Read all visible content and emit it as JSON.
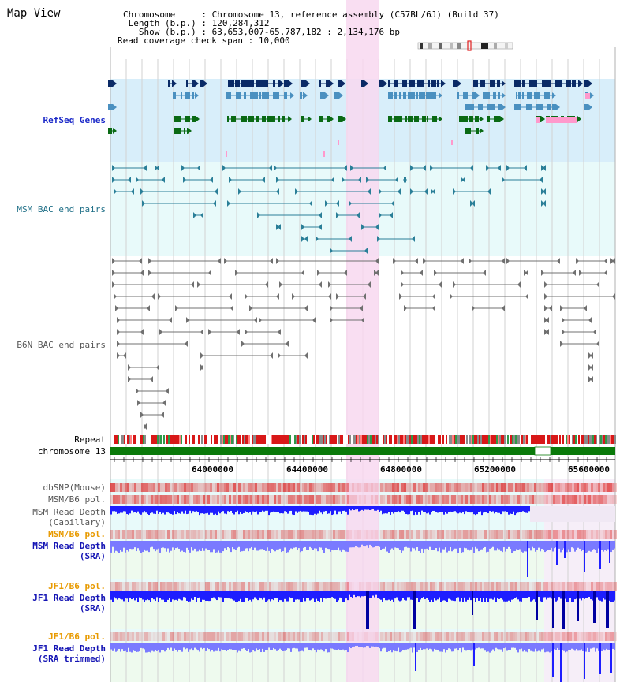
{
  "title": "Map View",
  "info": {
    "chromosome_label": "Chromosome",
    "chromosome_value": "Chromosome 13, reference assembly (C57BL/6J) (Build 37)",
    "length_label": "Length (b.p.)",
    "length_value": "120,284,312",
    "show_label": "Show (b.p.)",
    "show_value": "63,653,007-65,787,182 : 2,134,176 bp",
    "coverage_label": "Read coverage check span",
    "coverage_value": "10,000"
  },
  "tracks": {
    "refseq": "RefSeq Genes",
    "msm_bac": "MSM BAC end pairs",
    "b6n_bac": "B6N BAC end pairs",
    "repeat": "Repeat",
    "chromosome": "chromosome 13",
    "dbsnp": "dbSNP(Mouse)",
    "msm_b6_pol_1": "MSM/B6 pol.",
    "msm_depth_cap_1": "MSM Read Depth",
    "msm_depth_cap_2": "(Capillary)",
    "msm_b6_pol_2": "MSM/B6 pol.",
    "msm_depth_sra_1": "MSM Read Depth",
    "msm_depth_sra_2": "(SRA)",
    "jf1_b6_pol_1": "JF1/B6 pol.",
    "jf1_depth_sra_1": "JF1 Read Depth",
    "jf1_depth_sra_2": "(SRA)",
    "jf1_b6_pol_2": "JF1/B6 pol.",
    "jf1_depth_trim_1": "JF1 Read Depth",
    "jf1_depth_trim_2": "(SRA trimmed)"
  },
  "axis": {
    "ticks": [
      "64000000",
      "64400000",
      "64800000",
      "65200000",
      "65600000"
    ]
  },
  "colors": {
    "highlight": "#f8d8f0",
    "refseq_bg": "#d8eefa",
    "msm_bac_bg": "#e8fafa",
    "gene_dark": "#0a2a66",
    "gene_mid": "#4a90c0",
    "gene_green": "#0a6a14",
    "gene_pink": "#ff99cc",
    "chrom_green": "#0a7a0a",
    "depth_blue": "#1e1eff",
    "depth_light": "#7a7aff"
  }
}
